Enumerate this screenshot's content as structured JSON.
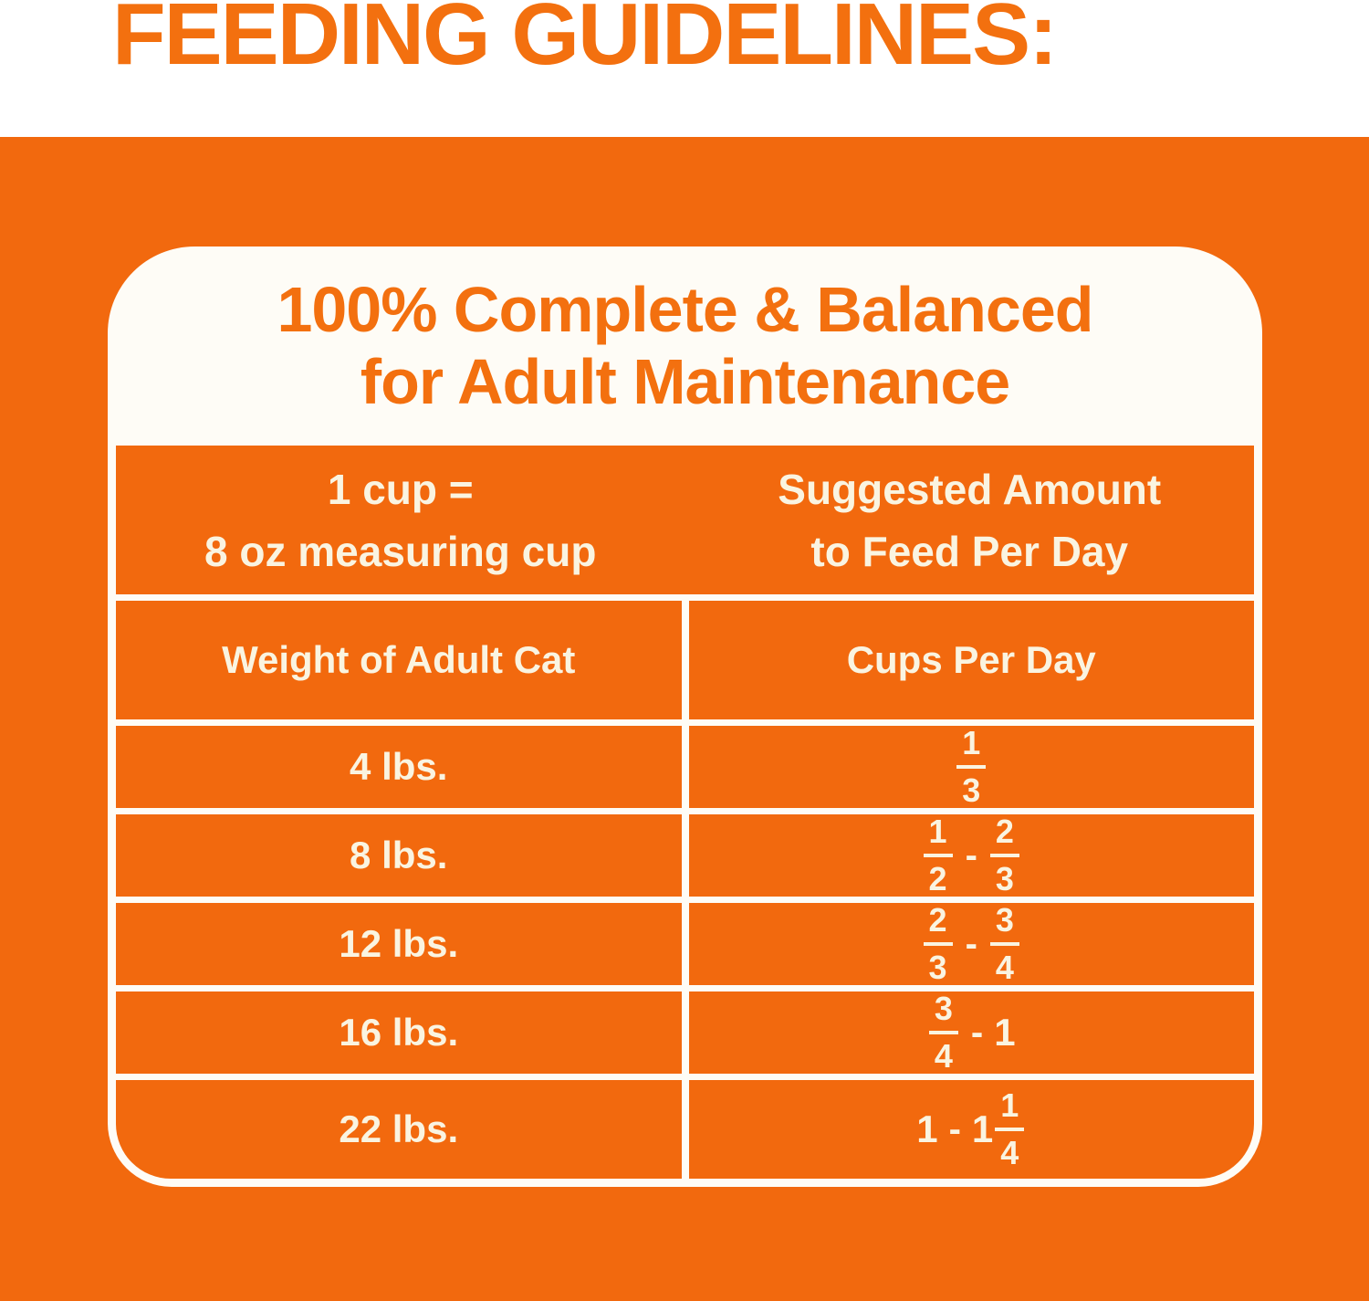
{
  "page": {
    "title": "FEEDING GUIDELINES:"
  },
  "colors": {
    "background_orange": "#F2690E",
    "text_orange": "#F3700F",
    "table_text_cream": "#FAF4E1",
    "card_white": "#FEFCF6"
  },
  "card": {
    "heading_line1": "100% Complete & Balanced",
    "heading_line2": "for Adult Maintenance",
    "header": {
      "left_line1": "1 cup =",
      "left_line2": "8 oz measuring cup",
      "right_line1": "Suggested Amount",
      "right_line2": "to Feed Per Day"
    },
    "columns": [
      "Weight of Adult Cat",
      "Cups Per Day"
    ],
    "rows": [
      {
        "weight": "4 lbs.",
        "cups": [
          {
            "t": "frac",
            "n": "1",
            "d": "3"
          }
        ]
      },
      {
        "weight": "8 lbs.",
        "cups": [
          {
            "t": "frac",
            "n": "1",
            "d": "2"
          },
          {
            "t": "dash"
          },
          {
            "t": "frac",
            "n": "2",
            "d": "3"
          }
        ]
      },
      {
        "weight": "12 lbs.",
        "cups": [
          {
            "t": "frac",
            "n": "2",
            "d": "3"
          },
          {
            "t": "dash"
          },
          {
            "t": "frac",
            "n": "3",
            "d": "4"
          }
        ]
      },
      {
        "weight": "16 lbs.",
        "cups": [
          {
            "t": "frac",
            "n": "3",
            "d": "4"
          },
          {
            "t": "dash"
          },
          {
            "t": "num",
            "v": "1"
          }
        ]
      },
      {
        "weight": "22 lbs.",
        "cups": [
          {
            "t": "num",
            "v": "1"
          },
          {
            "t": "dash"
          },
          {
            "t": "num",
            "v": "1"
          },
          {
            "t": "frac",
            "n": "1",
            "d": "4"
          }
        ]
      }
    ]
  },
  "chart_data": {
    "type": "table",
    "title": "Feeding Guidelines - 100% Complete & Balanced for Adult Maintenance",
    "note": "1 cup = 8 oz measuring cup; Suggested Amount to Feed Per Day",
    "columns": [
      "Weight of Adult Cat",
      "Cups Per Day"
    ],
    "rows": [
      [
        "4 lbs.",
        "1/3"
      ],
      [
        "8 lbs.",
        "1/2 - 2/3"
      ],
      [
        "12 lbs.",
        "2/3 - 3/4"
      ],
      [
        "16 lbs.",
        "3/4 - 1"
      ],
      [
        "22 lbs.",
        "1 - 1 1/4"
      ]
    ]
  }
}
